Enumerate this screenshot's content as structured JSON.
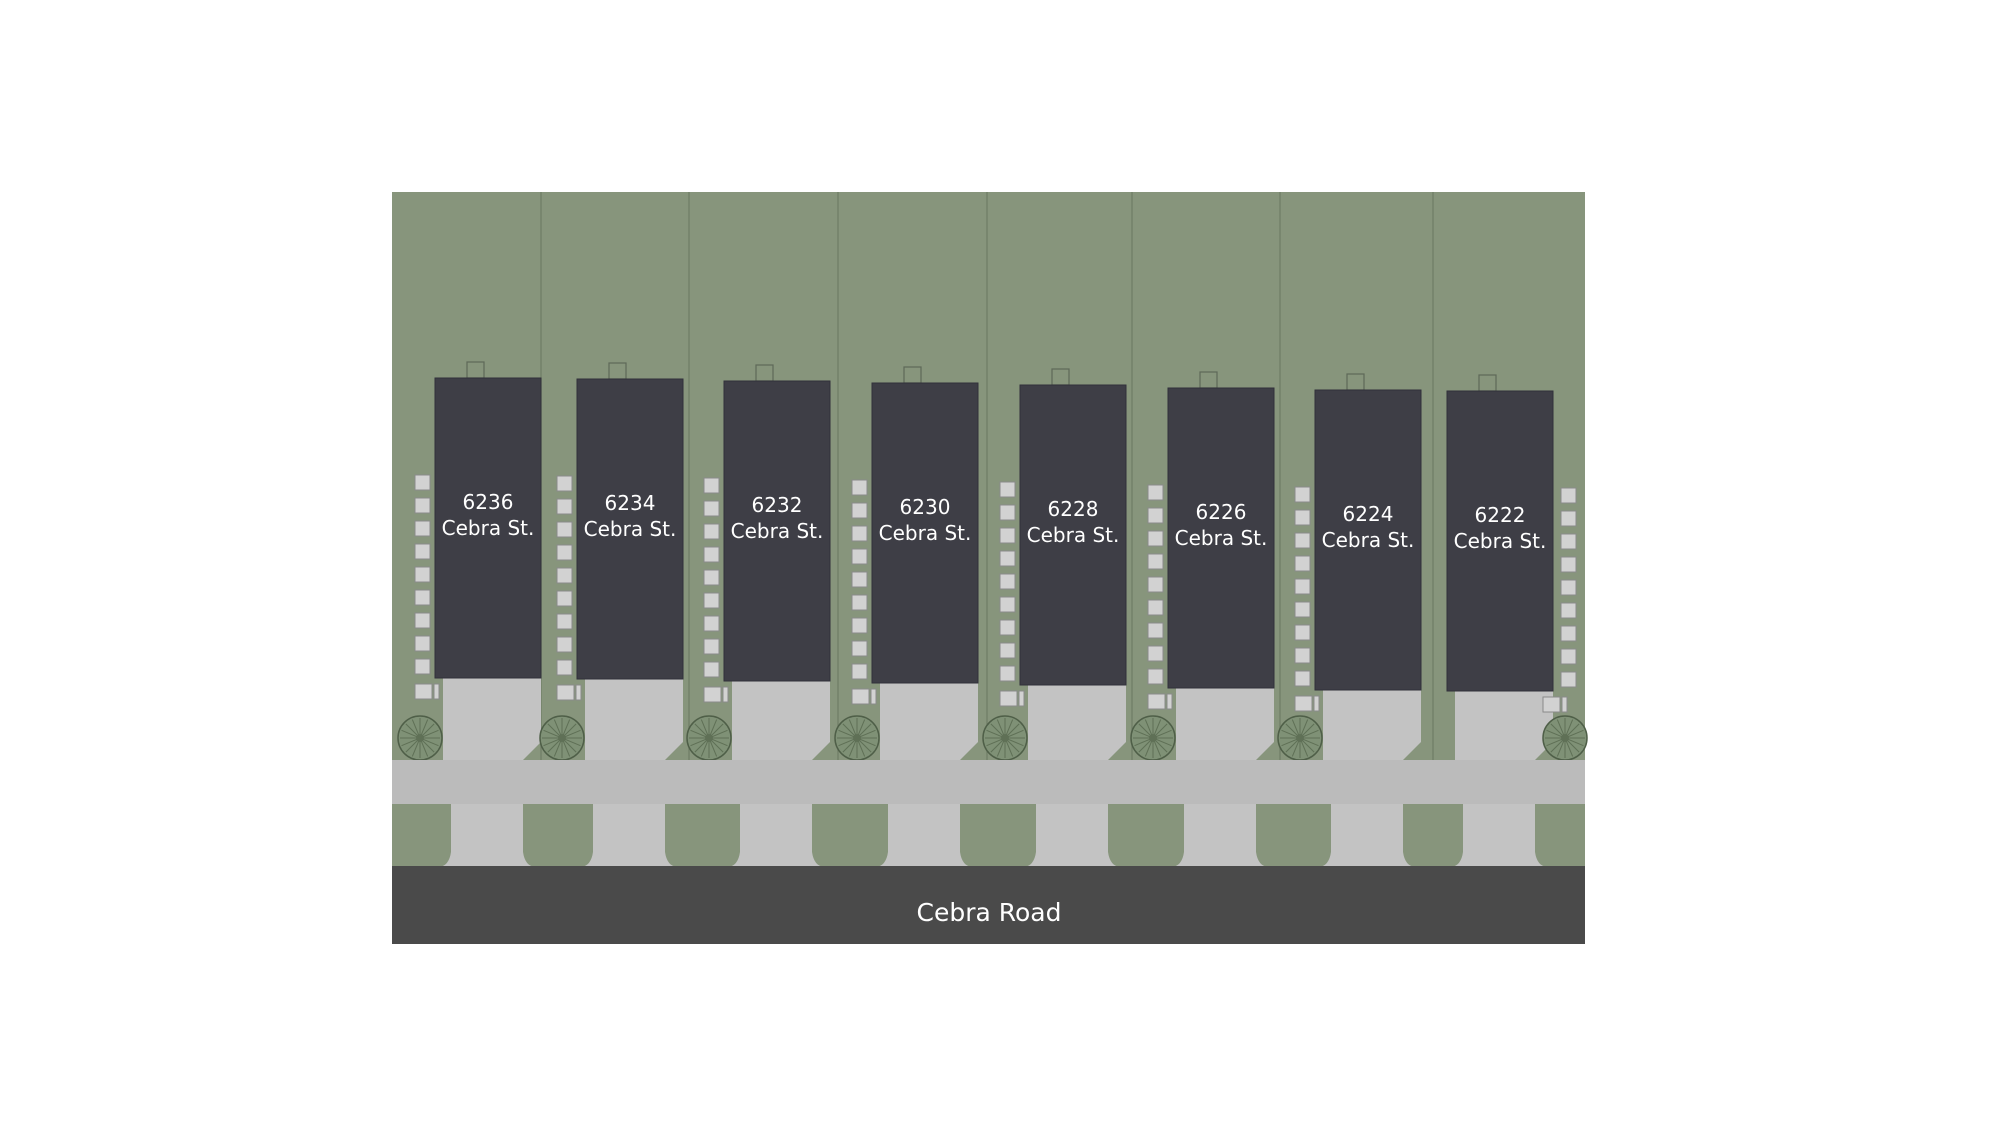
{
  "site_plan": {
    "road": {
      "name": "Cebra Road"
    },
    "lots": [
      {
        "number": "6236",
        "street": "Cebra St."
      },
      {
        "number": "6234",
        "street": "Cebra St."
      },
      {
        "number": "6232",
        "street": "Cebra St."
      },
      {
        "number": "6230",
        "street": "Cebra St."
      },
      {
        "number": "6228",
        "street": "Cebra St."
      },
      {
        "number": "6226",
        "street": "Cebra St."
      },
      {
        "number": "6224",
        "street": "Cebra St."
      },
      {
        "number": "6222",
        "street": "Cebra St."
      }
    ],
    "colors": {
      "grass": "#87957c",
      "building": "#3e3e46",
      "paving": "#c3c3c3",
      "sidewalk": "#bbbbbb",
      "road": "#4a4a4a",
      "paver": "#d2d2d2",
      "lot_line": "#6f7d66",
      "tree": "#7f9176"
    },
    "icons": {
      "tree": "tree-icon",
      "paver": "stepping-stone-icon"
    }
  }
}
